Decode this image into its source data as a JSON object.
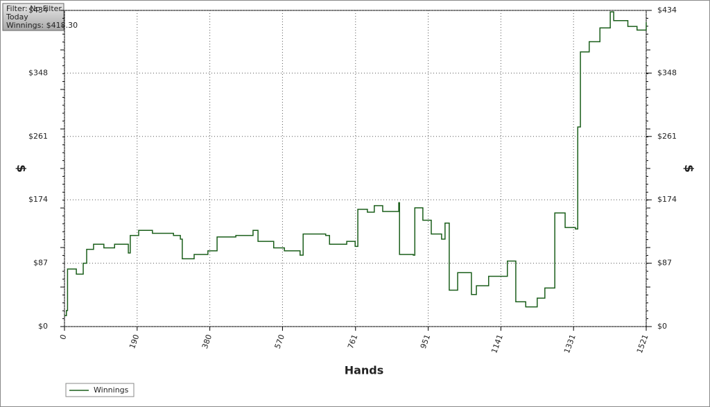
{
  "chart_data": {
    "type": "line",
    "x_label": "Hands",
    "y_label": "$",
    "y2_label": "$",
    "x": [
      0,
      5,
      8,
      31,
      49,
      58,
      76,
      103,
      131,
      167,
      172,
      194,
      230,
      285,
      303,
      308,
      339,
      375,
      399,
      448,
      493,
      506,
      547,
      575,
      616,
      624,
      683,
      693,
      738,
      760,
      767,
      792,
      810,
      832,
      874,
      876,
      912,
      916,
      937,
      959,
      986,
      995,
      1006,
      1028,
      1064,
      1077,
      1109,
      1158,
      1180,
      1206,
      1236,
      1256,
      1278,
      1282,
      1309,
      1336,
      1342,
      1349,
      1372,
      1400,
      1427,
      1436,
      1473,
      1497,
      1521
    ],
    "series": [
      {
        "name": "Winnings",
        "color": "#1a5e1a",
        "values": [
          15,
          22,
          79,
          72,
          87,
          106,
          113,
          108,
          113,
          101,
          125,
          132,
          128,
          125,
          120,
          93,
          99,
          104,
          123,
          125,
          132,
          117,
          108,
          104,
          98,
          127,
          125,
          113,
          117,
          110,
          161,
          157,
          166,
          158,
          170,
          99,
          98,
          163,
          146,
          127,
          120,
          142,
          50,
          74,
          44,
          56,
          69,
          90,
          34,
          27,
          39,
          53,
          53,
          156,
          136,
          134,
          274,
          377,
          391,
          410,
          432,
          420,
          412,
          407,
          418
        ]
      }
    ],
    "xlim": [
      0,
      1521
    ],
    "xticks": [
      0,
      190,
      380,
      570,
      761,
      951,
      1141,
      1331,
      1521
    ],
    "ylim": [
      0,
      434
    ],
    "yticks": [
      {
        "value": 0,
        "label": "$0"
      },
      {
        "value": 87,
        "label": "$87"
      },
      {
        "value": 174,
        "label": "$174"
      },
      {
        "value": 261,
        "label": "$261"
      },
      {
        "value": 348,
        "label": "$348"
      },
      {
        "value": 434,
        "label": "$434"
      }
    ],
    "y2lim": [
      0,
      434
    ],
    "y2ticks": [
      {
        "value": 0,
        "label": "$0"
      },
      {
        "value": 87,
        "label": "$87"
      },
      {
        "value": 174,
        "label": "$174"
      },
      {
        "value": 261,
        "label": "$261"
      },
      {
        "value": 348,
        "label": "$348"
      },
      {
        "value": 434,
        "label": "$434"
      }
    ],
    "grid": true,
    "step": true,
    "legend": "bottom-left"
  },
  "info_box": {
    "lines": [
      "Filter: No Filter",
      "Today",
      "Winnings: $418.30"
    ]
  }
}
